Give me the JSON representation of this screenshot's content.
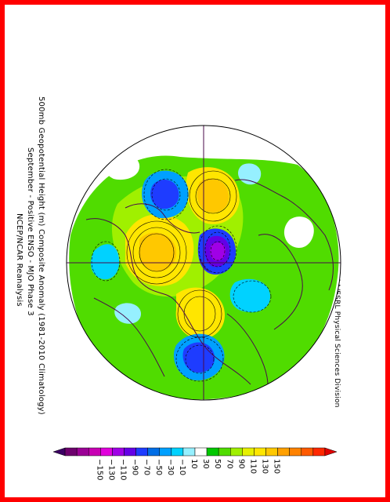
{
  "header": {
    "title": "500mb Geopotential Height (m) Composite Anomaly (1981-2010 Climatology)",
    "subtitle": "September - Positive ENSO - MJO Phase 3",
    "source": "NCEP/NCAR Reanalysis",
    "credit": "NOAA/ESRL Physical Sciences Division"
  },
  "colorbar": {
    "ticks": [
      "-150",
      "-130",
      "-110",
      "-90",
      "-70",
      "-50",
      "-30",
      "-10",
      "10",
      "30",
      "50",
      "70",
      "90",
      "110",
      "130",
      "150"
    ],
    "colors": [
      "#3c0064",
      "#6e006e",
      "#9b0096",
      "#c800b4",
      "#e100dc",
      "#a000e6",
      "#6400e6",
      "#1e3cff",
      "#006ee6",
      "#00a0ff",
      "#00d2ff",
      "#96f0ff",
      "#ffffff",
      "#00c800",
      "#50dc00",
      "#a0f000",
      "#e6f000",
      "#ffe600",
      "#ffc800",
      "#ffa000",
      "#ff8200",
      "#ff5a00",
      "#ff2800",
      "#e10000"
    ]
  },
  "map": {
    "colors": {
      "land_border": "#4a0a4a",
      "neg_strong": "#5a00b4",
      "neg_mid": "#1e3cff",
      "neg_light": "#00a0ff",
      "neg_pale": "#96f0ff",
      "pos_light": "#50c800",
      "pos_mid": "#a0f000",
      "pos_strong": "#ffe600",
      "pos_max": "#ffc800"
    }
  }
}
